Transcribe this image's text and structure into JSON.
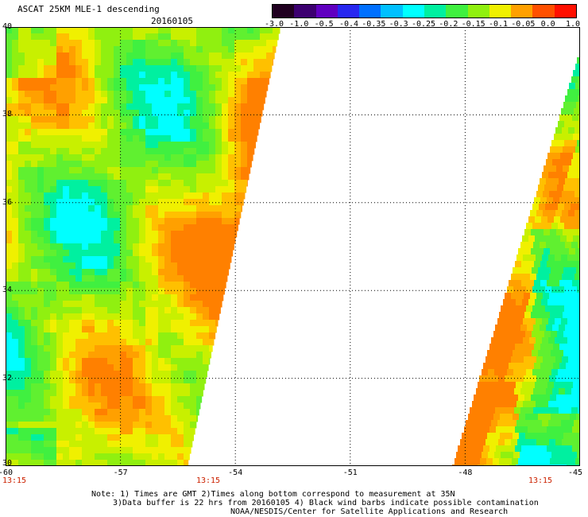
{
  "header": {
    "title": "ASCAT 25KM MLE-1 descending",
    "date": "20160105"
  },
  "colorbar": {
    "labels": [
      "-3.0",
      "-1.0",
      "-0.5",
      "-0.4",
      "-0.35",
      "-0.3",
      "-0.25",
      "-0.2",
      "-0.15",
      "-0.1",
      "-0.05",
      "0.0",
      "1.0"
    ],
    "colors": [
      "#200020",
      "#3c0070",
      "#6000c0",
      "#2828f0",
      "#0070ff",
      "#00c0ff",
      "#00ffff",
      "#00f0a0",
      "#40f040",
      "#90f010",
      "#f0f000",
      "#ffa000",
      "#ff5000",
      "#ff1000"
    ]
  },
  "map": {
    "lon_min": -60,
    "lon_max": -45,
    "lat_min": 30,
    "lat_max": 40,
    "grid": "dotted",
    "y_ticks": [
      "40",
      "38",
      "36",
      "34",
      "32",
      "30"
    ],
    "x_ticks": [
      "-60",
      "-57",
      "-54",
      "-51",
      "-48",
      "-45"
    ],
    "pass_times": [
      "13:15",
      "13:15",
      "13:15"
    ]
  },
  "notes": {
    "line1": "Note: 1) Times are GMT 2)Times along bottom correspond to measurement at 35N",
    "line2": "3)Data buffer is 22 hrs from 20160105 4) Black wind barbs indicate possible contamination",
    "line3": "NOAA/NESDIS/Center for Satellite Applications and Research"
  }
}
